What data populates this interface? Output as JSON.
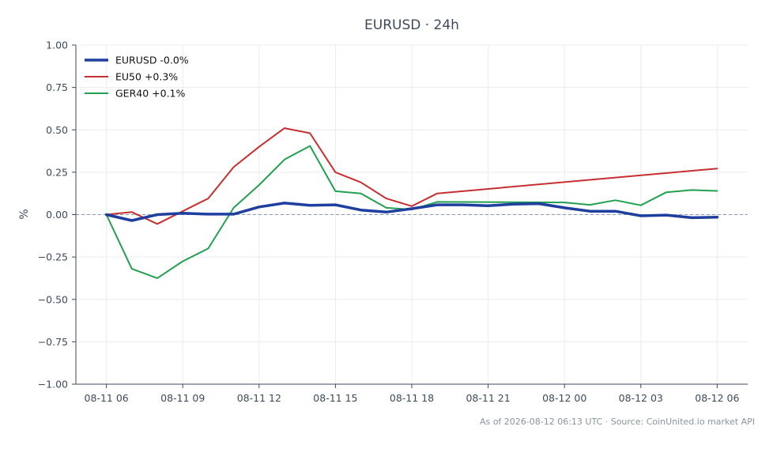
{
  "chart_data": {
    "type": "line",
    "title": "EURUSD · 24h",
    "xlabel": "",
    "ylabel": "%",
    "ylim": [
      -1.0,
      1.0
    ],
    "yticks": [
      1.0,
      0.75,
      0.5,
      0.25,
      0.0,
      -0.25,
      -0.5,
      -0.75,
      -1.0
    ],
    "ytick_labels": [
      "1.00",
      "0.75",
      "0.50",
      "0.25",
      "0.00",
      "−0.25",
      "−0.50",
      "−0.75",
      "−1.00"
    ],
    "x_range_hours": [
      -1.2,
      25.2
    ],
    "xticks_hours": [
      0,
      3,
      6,
      9,
      12,
      15,
      18,
      21,
      24
    ],
    "xtick_labels": [
      "08-11 06",
      "08-11 09",
      "08-11 12",
      "08-11 15",
      "08-11 18",
      "08-11 21",
      "08-12 00",
      "08-12 03",
      "08-12 06"
    ],
    "grid": true,
    "zero_line": true,
    "legend_position": "top-left",
    "series": [
      {
        "name": "EURUSD -0.0%",
        "color": "#1f3f9e",
        "width": 3.5,
        "x": [
          0,
          1,
          2,
          3,
          4,
          5,
          6,
          7,
          8,
          9,
          10,
          11,
          12,
          13,
          14,
          15,
          16,
          17,
          18,
          19,
          20,
          21,
          22,
          23,
          24
        ],
        "y": [
          0.0,
          -0.035,
          0.0,
          0.008,
          0.003,
          0.003,
          0.045,
          0.068,
          0.055,
          0.058,
          0.027,
          0.015,
          0.035,
          0.058,
          0.058,
          0.052,
          0.062,
          0.065,
          0.04,
          0.02,
          0.02,
          -0.007,
          -0.003,
          -0.018,
          -0.015
        ]
      },
      {
        "name": "EU50 +0.3%",
        "color": "#c62f2f",
        "width": 2,
        "x": [
          0,
          1,
          2,
          3,
          4,
          5,
          6,
          7,
          8,
          9,
          10,
          11,
          12,
          13,
          24
        ],
        "y": [
          0.0,
          0.015,
          -0.055,
          0.02,
          0.095,
          0.28,
          0.4,
          0.51,
          0.48,
          0.25,
          0.19,
          0.095,
          0.05,
          0.125,
          0.272
        ]
      },
      {
        "name": "GER40 +0.1%",
        "color": "#22a04f",
        "width": 2,
        "x": [
          0,
          1,
          2,
          3,
          4,
          5,
          6,
          7,
          8,
          9,
          10,
          11,
          12,
          13,
          18,
          19,
          20,
          21,
          22,
          23,
          24
        ],
        "y": [
          0.0,
          -0.32,
          -0.375,
          -0.275,
          -0.2,
          0.04,
          0.175,
          0.325,
          0.405,
          0.138,
          0.125,
          0.04,
          0.03,
          0.075,
          0.072,
          0.058,
          0.085,
          0.055,
          0.132,
          0.145,
          0.14
        ]
      }
    ]
  },
  "footer": "As of 2026-08-12 06:13 UTC · Source: CoinUnited.io market API"
}
